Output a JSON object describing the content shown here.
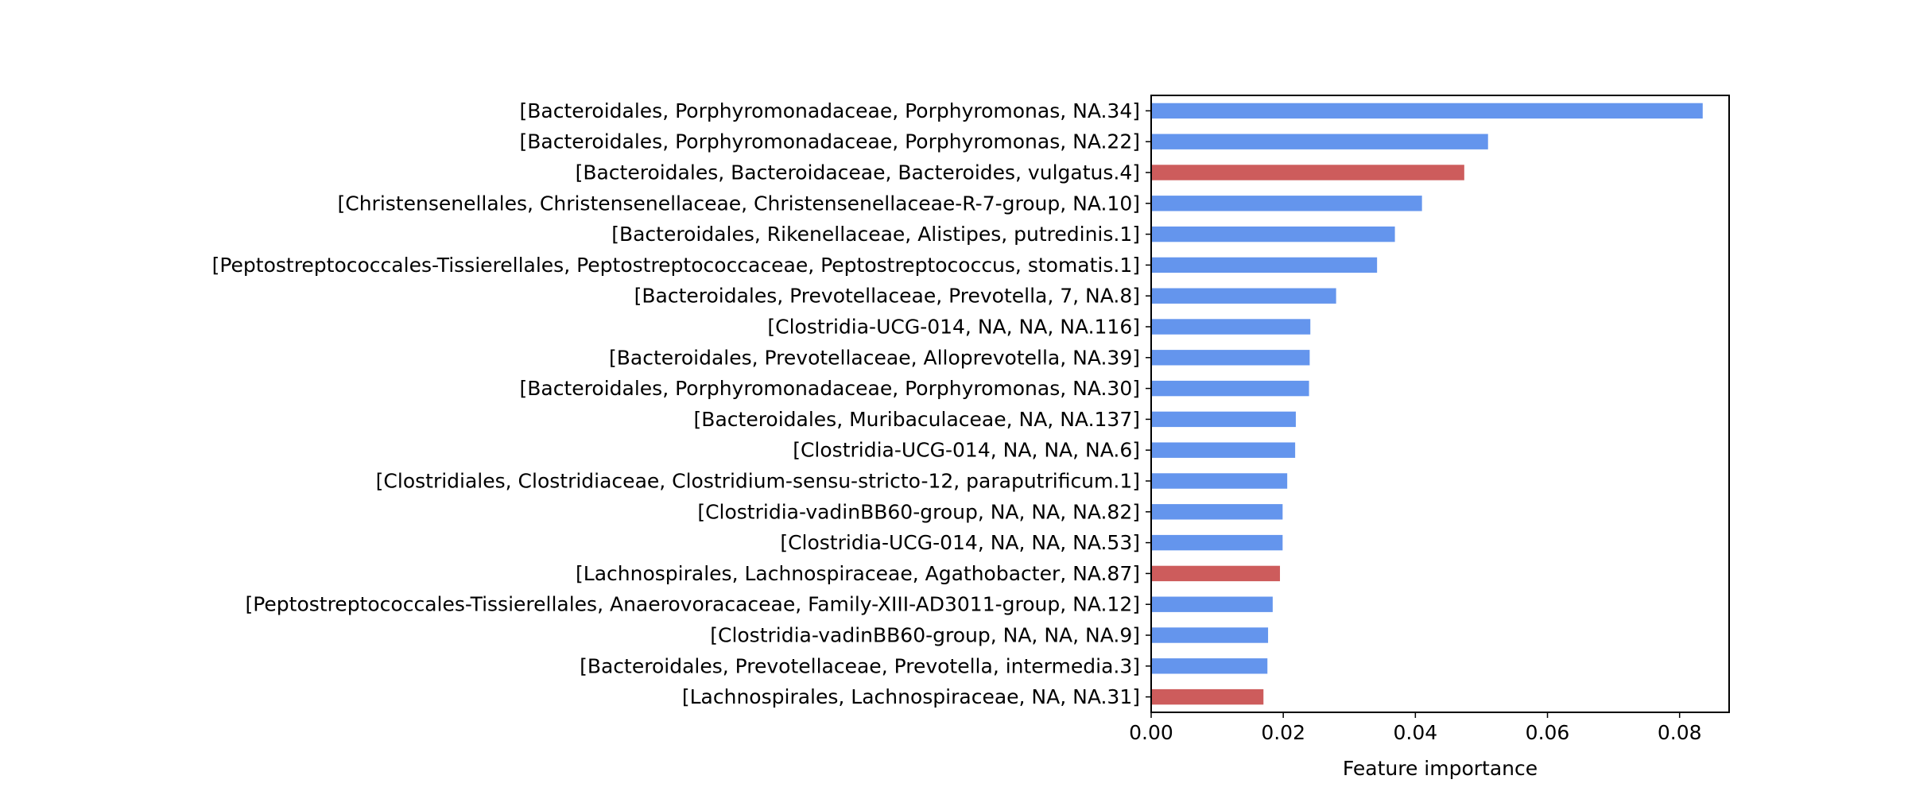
{
  "chart_data": {
    "type": "bar",
    "orientation": "horizontal",
    "title": "",
    "xlabel": "Feature importance",
    "ylabel": "",
    "xlim": [
      0,
      0.0875
    ],
    "xticks": [
      0.0,
      0.02,
      0.04,
      0.06,
      0.08
    ],
    "xtick_labels": [
      "0.00",
      "0.02",
      "0.04",
      "0.06",
      "0.08"
    ],
    "grid": false,
    "colors": {
      "default": "#6495ED",
      "highlight": "#CD5C5C"
    },
    "categories": [
      "[Bacteroidales, Porphyromonadaceae, Porphyromonas, NA.34]",
      "[Bacteroidales, Porphyromonadaceae, Porphyromonas, NA.22]",
      "[Bacteroidales, Bacteroidaceae, Bacteroides, vulgatus.4]",
      "[Christensenellales, Christensenellaceae, Christensenellaceae-R-7-group, NA.10]",
      "[Bacteroidales, Rikenellaceae, Alistipes, putredinis.1]",
      "[Peptostreptococcales-Tissierellales, Peptostreptococcaceae, Peptostreptococcus, stomatis.1]",
      "[Bacteroidales, Prevotellaceae, Prevotella, 7, NA.8]",
      "[Clostridia-UCG-014, NA, NA, NA.116]",
      "[Bacteroidales, Prevotellaceae, Alloprevotella, NA.39]",
      "[Bacteroidales, Porphyromonadaceae, Porphyromonas, NA.30]",
      "[Bacteroidales, Muribaculaceae, NA, NA.137]",
      "[Clostridia-UCG-014, NA, NA, NA.6]",
      "[Clostridiales, Clostridiaceae, Clostridium-sensu-stricto-12, paraputrificum.1]",
      "[Clostridia-vadinBB60-group, NA, NA, NA.82]",
      "[Clostridia-UCG-014, NA, NA, NA.53]",
      "[Lachnospirales, Lachnospiraceae, Agathobacter, NA.87]",
      "[Peptostreptococcales-Tissierellales, Anaerovoracaceae, Family-XIII-AD3011-group, NA.12]",
      "[Clostridia-vadinBB60-group, NA, NA, NA.9]",
      "[Bacteroidales, Prevotellaceae, Prevotella, intermedia.3]",
      "[Lachnospirales, Lachnospiraceae, NA, NA.31]"
    ],
    "values": [
      0.0835,
      0.051,
      0.0474,
      0.041,
      0.0369,
      0.0342,
      0.028,
      0.0241,
      0.024,
      0.0239,
      0.0219,
      0.0218,
      0.0206,
      0.0199,
      0.0199,
      0.0195,
      0.0184,
      0.0177,
      0.0176,
      0.017
    ],
    "bar_colors": [
      "#6495ED",
      "#6495ED",
      "#CD5C5C",
      "#6495ED",
      "#6495ED",
      "#6495ED",
      "#6495ED",
      "#6495ED",
      "#6495ED",
      "#6495ED",
      "#6495ED",
      "#6495ED",
      "#6495ED",
      "#6495ED",
      "#6495ED",
      "#CD5C5C",
      "#6495ED",
      "#6495ED",
      "#6495ED",
      "#CD5C5C"
    ]
  }
}
